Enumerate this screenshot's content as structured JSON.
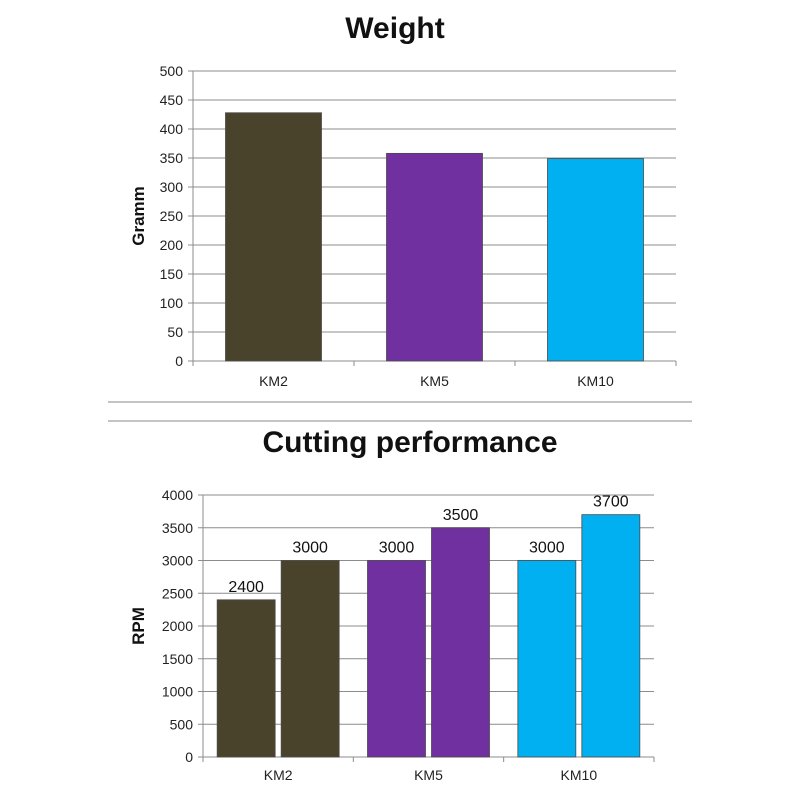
{
  "chart_data": [
    {
      "type": "bar",
      "title": "Weight",
      "xlabel": "",
      "ylabel": "Gramm",
      "ylim": [
        0,
        500
      ],
      "yticks": [
        0,
        50,
        100,
        150,
        200,
        250,
        300,
        350,
        400,
        450,
        500
      ],
      "categories": [
        "KM2",
        "KM5",
        "KM10"
      ],
      "values": [
        428,
        358,
        349
      ],
      "colors": [
        "#4a432c",
        "#7030a0",
        "#00b0f0"
      ],
      "grid": true
    },
    {
      "type": "bar",
      "title": "Cutting performance",
      "xlabel": "",
      "ylabel": "RPM",
      "ylim": [
        0,
        4000
      ],
      "yticks": [
        0,
        500,
        1000,
        1500,
        2000,
        2500,
        3000,
        3500,
        4000
      ],
      "categories": [
        "KM2",
        "KM5",
        "KM10"
      ],
      "values": [
        [
          2400,
          3000
        ],
        [
          3000,
          3500
        ],
        [
          3000,
          3700
        ]
      ],
      "data_labels": [
        [
          "2400",
          "3000"
        ],
        [
          "3000",
          "3500"
        ],
        [
          "3000",
          "3700"
        ]
      ],
      "colors": [
        "#4a432c",
        "#7030a0",
        "#00b0f0"
      ],
      "grid": true
    }
  ]
}
